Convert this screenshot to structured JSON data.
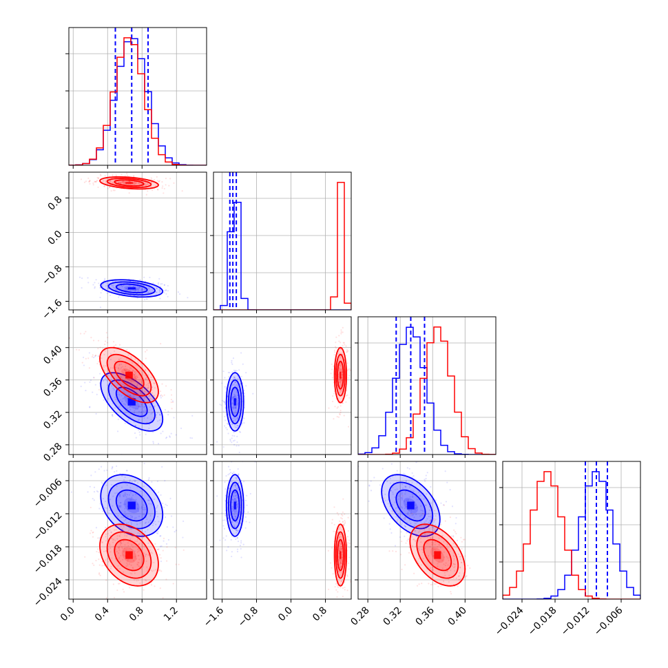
{
  "chart_data": {
    "type": "corner",
    "colors": {
      "series_a": "#0000ff",
      "series_b": "#ff0000",
      "grid": "#b0b0b0"
    },
    "series": [
      {
        "color": "#0000ff",
        "means": [
          0.68,
          -1.3,
          0.333,
          -0.0105
        ],
        "sds": [
          0.18,
          0.1,
          0.018,
          0.0028
        ],
        "quantiles": [
          [
            0.49,
            0.68,
            0.87
          ],
          [
            -1.42,
            -1.35,
            -1.27
          ],
          [
            0.315,
            0.333,
            0.35
          ],
          [
            -0.0125,
            -0.0105,
            -0.0085
          ]
        ]
      },
      {
        "color": "#ff0000",
        "means": [
          0.65,
          1.15,
          0.366,
          -0.0195
        ],
        "sds": [
          0.17,
          0.07,
          0.017,
          0.0028
        ],
        "quantiles": []
      }
    ],
    "correlations": [
      {
        "i": 1,
        "j": 0,
        "rho": -0.35
      },
      {
        "i": 2,
        "j": 0,
        "rho": -0.6
      },
      {
        "i": 2,
        "j": 1,
        "rho": 0.0
      },
      {
        "i": 3,
        "j": 0,
        "rho": -0.3
      },
      {
        "i": 3,
        "j": 1,
        "rho": 0.0
      },
      {
        "i": 3,
        "j": 2,
        "rho": -0.45
      }
    ],
    "axes": [
      {
        "range": [
          -0.05,
          1.55
        ],
        "ticks": [
          "0.0",
          "0.4",
          "0.8",
          "1.2"
        ],
        "tick_values": [
          0.0,
          0.4,
          0.8,
          1.2
        ]
      },
      {
        "range": [
          -1.8,
          1.4
        ],
        "ticks": [
          "−1.6",
          "−0.8",
          "0.0",
          "0.8"
        ],
        "tick_values": [
          -1.6,
          -0.8,
          0.0,
          0.8
        ]
      },
      {
        "range": [
          0.268,
          0.438
        ],
        "ticks": [
          "0.28",
          "0.32",
          "0.36",
          "0.40"
        ],
        "tick_values": [
          0.28,
          0.32,
          0.36,
          0.4
        ]
      },
      {
        "range": [
          -0.0275,
          -0.0025
        ],
        "ticks": [
          "−0.024",
          "−0.018",
          "−0.012",
          "−0.006"
        ],
        "tick_values": [
          -0.024,
          -0.018,
          -0.012,
          -0.006
        ]
      }
    ],
    "grid": true,
    "histograms": "step",
    "contour_levels": [
      0.5,
      1.0,
      1.5,
      2.0
    ]
  }
}
